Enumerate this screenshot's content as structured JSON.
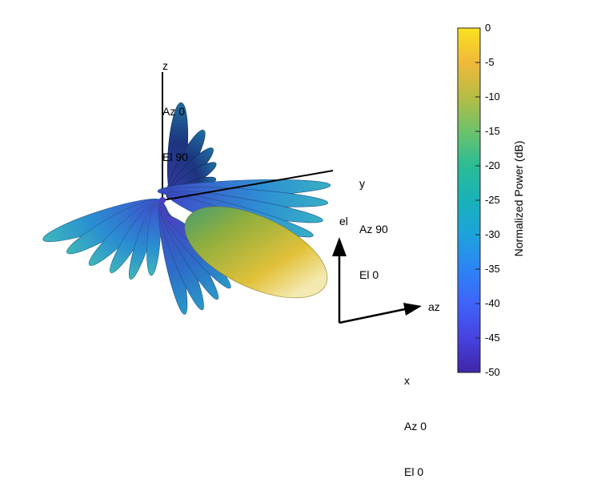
{
  "labels": {
    "z": [
      "z",
      "Az 0",
      "El 90"
    ],
    "y": [
      "y",
      "Az 90",
      "El 0"
    ],
    "x": [
      "x",
      "Az 0",
      "El 0"
    ],
    "el": "el",
    "az": "az"
  },
  "colorbar": {
    "title": "Normalized Power (dB)",
    "ticks": [
      "0",
      "-5",
      "-10",
      "-15",
      "-20",
      "-25",
      "-30",
      "-35",
      "-40",
      "-45",
      "-50"
    ],
    "range": [
      -50,
      0
    ],
    "colormap": [
      "#3e26a8",
      "#4742e0",
      "#3f64f8",
      "#2c84f4",
      "#1ea2dc",
      "#18b2b8",
      "#2bbc95",
      "#6cc26a",
      "#b7bc45",
      "#f0b93a",
      "#f9e21f"
    ]
  },
  "pattern": {
    "main_lobe_color": "#d6b030",
    "side_lobe_color": "#2f9ec9",
    "vertical_lobe_color": "#1f3a8f",
    "origin_color": "#4b3fc1"
  }
}
